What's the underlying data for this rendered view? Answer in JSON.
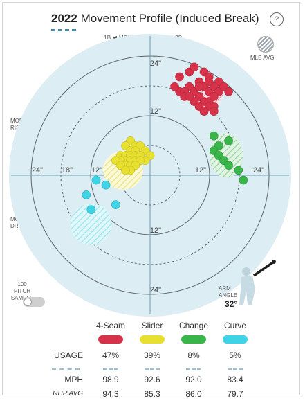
{
  "header": {
    "year": "2022",
    "title": "Movement Profile (Induced Break)",
    "help": "?"
  },
  "direction": {
    "left": "1B",
    "middle": "MOVES TOWARD",
    "right": "3B",
    "left_arrow": "◀",
    "right_arrow": "▶"
  },
  "legend_avg": {
    "label": "MLB AVG."
  },
  "side_labels": {
    "rise_line1": "MORE",
    "rise_line2": "RISE",
    "drop_line1": "MORE",
    "drop_line2": "DROP",
    "up_arrow": "▲",
    "down_arrow": "▼"
  },
  "sample": {
    "line1": "100 PITCH",
    "line2": "SAMPLE",
    "toggle_on": false
  },
  "arm": {
    "line1": "ARM",
    "line2": "ANGLE",
    "value": "32°"
  },
  "chart_data": {
    "type": "scatter",
    "axis_unit": "in",
    "x_tick_labels": [
      "24\"",
      "18\"",
      "12\"",
      "6",
      "12\"",
      "24\""
    ],
    "y_tick_labels": [
      "24\"",
      "12\"",
      "12\"",
      "24\""
    ],
    "ranges": {
      "x": [
        -24,
        24
      ],
      "y": [
        -24,
        24
      ]
    },
    "series": [
      {
        "name": "4-Seam",
        "color": "#d6334a",
        "avg": [
          11.5,
          16.5
        ],
        "points": [
          [
            6,
            20
          ],
          [
            8,
            21
          ],
          [
            9,
            22
          ],
          [
            11,
            21
          ],
          [
            12,
            20
          ],
          [
            14,
            19
          ],
          [
            10,
            19
          ],
          [
            8,
            18
          ],
          [
            6,
            17
          ],
          [
            7,
            17
          ],
          [
            9,
            17
          ],
          [
            11,
            18
          ],
          [
            12,
            17
          ],
          [
            13,
            18
          ],
          [
            14,
            17
          ],
          [
            15,
            18
          ],
          [
            10,
            16
          ],
          [
            11,
            15
          ],
          [
            12,
            15
          ],
          [
            13,
            16
          ],
          [
            9,
            15
          ],
          [
            12,
            14
          ],
          [
            10,
            14
          ],
          [
            16,
            17
          ],
          [
            13,
            14
          ],
          [
            5,
            18
          ],
          [
            7,
            16
          ],
          [
            11,
            13
          ],
          [
            13,
            13
          ],
          [
            8,
            16
          ],
          [
            10,
            18
          ],
          [
            12,
            19
          ]
        ]
      },
      {
        "name": "Slider",
        "color": "#e8e030",
        "avg": [
          -5.5,
          1.0
        ],
        "points": [
          [
            -4,
            7
          ],
          [
            -3,
            6
          ],
          [
            -2,
            6
          ],
          [
            -1,
            5
          ],
          [
            0,
            4
          ],
          [
            -5,
            6
          ],
          [
            -4,
            5
          ],
          [
            -3,
            5
          ],
          [
            -6,
            4
          ],
          [
            -5,
            4
          ],
          [
            -4,
            4
          ],
          [
            -3,
            4
          ],
          [
            -2,
            4
          ],
          [
            -1,
            3
          ],
          [
            -5,
            3
          ],
          [
            -4,
            3
          ],
          [
            -3,
            3
          ],
          [
            -2,
            3
          ],
          [
            -6,
            3
          ],
          [
            -7,
            3
          ],
          [
            -5,
            2
          ],
          [
            -4,
            2
          ],
          [
            -3,
            2
          ],
          [
            -6,
            2
          ],
          [
            -4,
            1
          ],
          [
            -5,
            1
          ]
        ]
      },
      {
        "name": "Change",
        "color": "#3ab54a",
        "avg": [
          15.5,
          4.0
        ],
        "points": [
          [
            13,
            8
          ],
          [
            16,
            7
          ],
          [
            14,
            6
          ],
          [
            13,
            5
          ],
          [
            14,
            4
          ],
          [
            15,
            3
          ],
          [
            16,
            2
          ],
          [
            18,
            1
          ],
          [
            19,
            -1
          ]
        ]
      },
      {
        "name": "Curve",
        "color": "#3fd3e6",
        "avg": [
          -12.0,
          -10.0
        ],
        "points": [
          [
            -11,
            -1
          ],
          [
            -9,
            -2
          ],
          [
            -13,
            -4
          ],
          [
            -7,
            -6
          ],
          [
            -12,
            -7
          ]
        ]
      }
    ]
  },
  "stats": {
    "pitches": [
      "4-Seam",
      "Slider",
      "Change",
      "Curve"
    ],
    "colors": [
      "#d6334a",
      "#e8e030",
      "#3ab54a",
      "#3fd3e6"
    ],
    "usage_label": "USAGE",
    "mph_label": "MPH",
    "rhp_label": "RHP AVG",
    "usage": [
      "47%",
      "39%",
      "8%",
      "5%"
    ],
    "mph": [
      "98.9",
      "92.6",
      "92.0",
      "83.4"
    ],
    "rhp_avg": [
      "94.3",
      "85.3",
      "86.0",
      "79.7"
    ]
  }
}
